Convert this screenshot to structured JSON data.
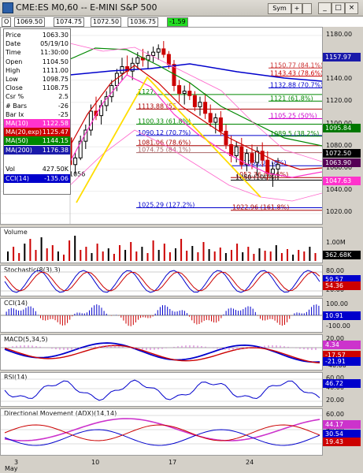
{
  "window": {
    "title": "CME:ES M0,60 -- E-MINI S&P 500",
    "symbol_btn": "Sym",
    "plus_btn": "+",
    "link_btn": "",
    "min_btn": "_",
    "max_btn": "□",
    "close_btn": "×"
  },
  "ohlc": {
    "o_label": "O",
    "o": "1069.50",
    "h": "1074.75",
    "l": "1072.50",
    "c": "1036.75",
    "chg": "-1.59"
  },
  "data_window": [
    {
      "k": "Price",
      "v": "1063.30"
    },
    {
      "k": "Date",
      "v": "05/19/10"
    },
    {
      "k": "Time",
      "v": "11:30:00"
    },
    {
      "k": "Open",
      "v": "1104.50"
    },
    {
      "k": "High",
      "v": "1111.00"
    },
    {
      "k": "Low",
      "v": "1098.75"
    },
    {
      "k": "Close",
      "v": "1108.75"
    },
    {
      "k": "Csr %",
      "v": "2.5"
    },
    {
      "k": "# Bars",
      "v": "-26"
    },
    {
      "k": "Bar Ix",
      "v": "-25"
    },
    {
      "k": "MA(10)",
      "v": "1122.58"
    },
    {
      "k": "MA(20,exp)",
      "v": "1125.47"
    },
    {
      "k": "MA(50)",
      "v": "1144.15"
    },
    {
      "k": "MA(200)",
      "v": "1176.38"
    },
    {
      "k": "Vol",
      "v": "427.50K"
    },
    {
      "k": "CCI(14)",
      "v": "-135.06"
    }
  ],
  "colors": {
    "ma10": "#ff33cc",
    "ma20": "#cc0000",
    "ma50": "#008800",
    "ma200": "#0000cc",
    "cci": "#0000cc",
    "up": "#000000",
    "down": "#cc0000",
    "fib": "#228822",
    "trend": "#ffdd00"
  },
  "price_axis": {
    "ticks": [
      "1180.00",
      "1160.00",
      "1140.00",
      "1120.00",
      "1100.00",
      "1080.00",
      "1060.00",
      "1040.00",
      "1020.00"
    ],
    "badges": [
      {
        "t": "1157.97",
        "c": "#1a1aaa"
      },
      {
        "t": "1095.84",
        "c": "#007700"
      },
      {
        "t": "1072.50",
        "c": "#000000"
      },
      {
        "t": "1063.90",
        "c": "#550055"
      },
      {
        "t": "1047.63",
        "c": "#ff33cc"
      }
    ]
  },
  "fib_labels": [
    {
      "t": "1150.77 (84.1%)",
      "c": "#cc3333"
    },
    {
      "t": "1143.43 (78.6%)",
      "c": "#cc0000"
    },
    {
      "t": "1132.88 (70.7%)",
      "c": "#0000cc"
    },
    {
      "t": "1127.",
      "c": "#008800"
    },
    {
      "t": "1121 (61.8%)",
      "c": "#008800"
    },
    {
      "t": "1113.88 (55",
      "c": "#aa0000"
    },
    {
      "t": "1105.25 (50%)",
      "c": "#cc00cc"
    },
    {
      "t": "1100.33 (61.8%)",
      "c": "#008800"
    },
    {
      "t": "1090.12 (70.7%)",
      "c": "#0000cc"
    },
    {
      "t": "1089.5 (38.2%)",
      "c": "#008800"
    },
    {
      "t": "1081.06 (78.6%)",
      "c": "#aa0000"
    },
    {
      "t": "1074.75 (84.1%)",
      "c": "#aa6666"
    },
    {
      "t": "1063.01 (8%)",
      "c": "#0000cc"
    },
    {
      "t": "1052.36 (78.6%)",
      "c": "#aa0000"
    },
    {
      "t": "1050 (100%)",
      "c": "#000000"
    },
    {
      "t": "1025.29 (127.2%)",
      "c": "#0000cc"
    },
    {
      "t": "1022.96 (161.8%)",
      "c": "#aa0000"
    },
    {
      "t": "1056",
      "c": "#000000"
    }
  ],
  "volume": {
    "label": "Volume",
    "ticks": [
      "1.00M"
    ],
    "badge": "362.68K"
  },
  "stoch": {
    "label": "Stochastic(8(3),3)",
    "ticks": [
      "80.00",
      "20.00"
    ],
    "badges": [
      {
        "t": "59.57",
        "c": "#0000cc"
      },
      {
        "t": "54.36",
        "c": "#cc0000"
      }
    ]
  },
  "cci": {
    "label": "CCI(14)",
    "ticks": [
      "100.00",
      "-100.00"
    ],
    "badges": [
      {
        "t": "10.91",
        "c": "#0000cc"
      }
    ]
  },
  "macd": {
    "label": "MACD(5,34,5)",
    "ticks": [
      "20.00",
      "0.00",
      "-20.00",
      "-40.00"
    ],
    "badges": [
      {
        "t": "4.34",
        "c": "#cc33cc"
      },
      {
        "t": "-17.57",
        "c": "#cc0000"
      },
      {
        "t": "-21.91",
        "c": "#0000cc"
      }
    ]
  },
  "rsi": {
    "label": "RSI(14)",
    "ticks": [
      "60.00",
      "40.00",
      "20.00"
    ],
    "badges": [
      {
        "t": "46.72",
        "c": "#0000cc"
      }
    ]
  },
  "adx": {
    "label": "Directional Movement (ADX)(14,14)",
    "ticks": [
      "60.00",
      "40.00",
      "20.00"
    ],
    "badges": [
      {
        "t": "44.17",
        "c": "#cc33cc"
      },
      {
        "t": "30.54",
        "c": "#0000cc"
      },
      {
        "t": "19.43",
        "c": "#cc0000"
      }
    ]
  },
  "x_axis": {
    "labels": [
      "3",
      "10",
      "17",
      "24"
    ],
    "month": "May"
  }
}
